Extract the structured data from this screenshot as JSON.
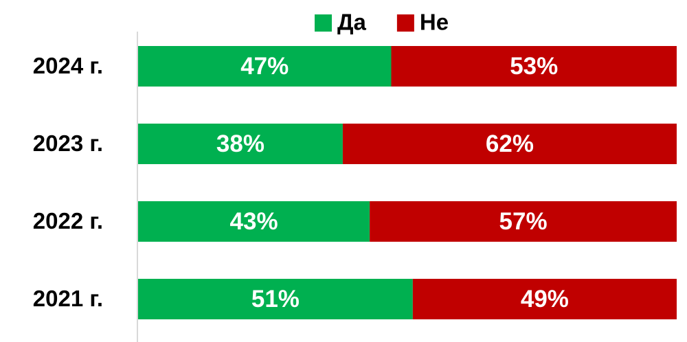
{
  "chart_data": {
    "type": "stacked-bar-horizontal",
    "categories": [
      "2024 г.",
      "2023 г.",
      "2022 г.",
      "2021 г."
    ],
    "series": [
      {
        "name": "Да",
        "color": "#00b050",
        "values": [
          47,
          38,
          43,
          51
        ],
        "value_labels": [
          "47%",
          "38%",
          "43%",
          "51%"
        ]
      },
      {
        "name": "Не",
        "color": "#c00000",
        "values": [
          53,
          62,
          57,
          49
        ],
        "value_labels": [
          "53%",
          "62%",
          "57%",
          "49%"
        ]
      }
    ],
    "xlim": [
      0,
      100
    ],
    "legend": "top"
  }
}
